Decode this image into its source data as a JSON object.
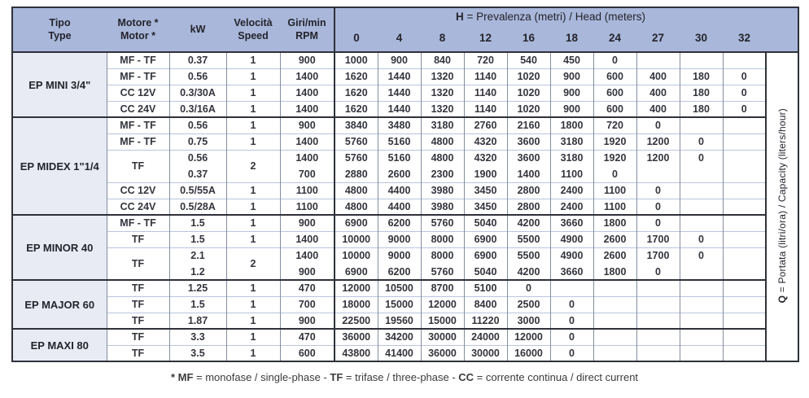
{
  "header": {
    "tipo1": "Tipo",
    "tipo2": "Type",
    "motore1": "Motore *",
    "motore2": "Motor *",
    "kw": "kW",
    "vel1": "Velocità",
    "vel2": "Speed",
    "giri1": "Giri/min",
    "giri2": "RPM",
    "h_bold": "H",
    "h_rest": " = Prevalenza (metri) / Head (meters)",
    "head_values": [
      "0",
      "4",
      "8",
      "12",
      "16",
      "18",
      "24",
      "27",
      "30",
      "32"
    ]
  },
  "q_label": {
    "bold": "Q",
    "rest": " = Portata (litri/ora) / Capacity (liters/hour)"
  },
  "groups": [
    {
      "type": "EP MINI 3/4\"",
      "rows": [
        {
          "motor": "MF - TF",
          "kw": "0.37",
          "speed": "1",
          "rpm": "900",
          "values": [
            "1000",
            "900",
            "840",
            "720",
            "540",
            "450",
            "0",
            "",
            "",
            ""
          ]
        },
        {
          "motor": "MF - TF",
          "kw": "0.56",
          "speed": "1",
          "rpm": "1400",
          "values": [
            "1620",
            "1440",
            "1320",
            "1140",
            "1020",
            "900",
            "600",
            "400",
            "180",
            "0"
          ]
        },
        {
          "motor": "CC 12V",
          "kw": "0.3/30A",
          "speed": "1",
          "rpm": "1400",
          "values": [
            "1620",
            "1440",
            "1320",
            "1140",
            "1020",
            "900",
            "600",
            "400",
            "180",
            "0"
          ]
        },
        {
          "motor": "CC 24V",
          "kw": "0.3/16A",
          "speed": "1",
          "rpm": "1400",
          "values": [
            "1620",
            "1440",
            "1320",
            "1140",
            "1020",
            "900",
            "600",
            "400",
            "180",
            "0"
          ]
        }
      ]
    },
    {
      "type": "EP MIDEX 1\"1/4",
      "rows": [
        {
          "motor": "MF - TF",
          "kw": "0.56",
          "speed": "1",
          "rpm": "900",
          "values": [
            "3840",
            "3480",
            "3180",
            "2760",
            "2160",
            "1800",
            "720",
            "0",
            "",
            ""
          ]
        },
        {
          "motor": "MF - TF",
          "kw": "0.75",
          "speed": "1",
          "rpm": "1400",
          "values": [
            "5760",
            "5160",
            "4800",
            "4320",
            "3600",
            "3180",
            "1920",
            "1200",
            "0",
            ""
          ]
        },
        {
          "motor": "TF",
          "kw": "0.56",
          "speed": "2",
          "rpm": "1400",
          "span": true,
          "values": [
            "5760",
            "5160",
            "4800",
            "4320",
            "3600",
            "3180",
            "1920",
            "1200",
            "0",
            ""
          ]
        },
        {
          "cont": true,
          "kw": "0.37",
          "rpm": "700",
          "values": [
            "2880",
            "2600",
            "2300",
            "1900",
            "1400",
            "1100",
            "0",
            "",
            "",
            ""
          ]
        },
        {
          "motor": "CC 12V",
          "kw": "0.5/55A",
          "speed": "1",
          "rpm": "1100",
          "values": [
            "4800",
            "4400",
            "3980",
            "3450",
            "2800",
            "2400",
            "1100",
            "0",
            "",
            ""
          ]
        },
        {
          "motor": "CC 24V",
          "kw": "0.5/28A",
          "speed": "1",
          "rpm": "1100",
          "values": [
            "4800",
            "4400",
            "3980",
            "3450",
            "2800",
            "2400",
            "1100",
            "0",
            "",
            ""
          ]
        }
      ]
    },
    {
      "type": "EP MINOR 40",
      "rows": [
        {
          "motor": "MF - TF",
          "kw": "1.5",
          "speed": "1",
          "rpm": "900",
          "values": [
            "6900",
            "6200",
            "5760",
            "5040",
            "4200",
            "3660",
            "1800",
            "0",
            "",
            ""
          ]
        },
        {
          "motor": "TF",
          "kw": "1.5",
          "speed": "1",
          "rpm": "1400",
          "values": [
            "10000",
            "9000",
            "8000",
            "6900",
            "5500",
            "4900",
            "2600",
            "1700",
            "0",
            ""
          ]
        },
        {
          "motor": "TF",
          "kw": "2.1",
          "speed": "2",
          "rpm": "1400",
          "span": true,
          "values": [
            "10000",
            "9000",
            "8000",
            "6900",
            "5500",
            "4900",
            "2600",
            "1700",
            "0",
            ""
          ]
        },
        {
          "cont": true,
          "kw": "1.2",
          "rpm": "900",
          "values": [
            "6900",
            "6200",
            "5760",
            "5040",
            "4200",
            "3660",
            "1800",
            "0",
            "",
            ""
          ]
        }
      ]
    },
    {
      "type": "EP MAJOR 60",
      "rows": [
        {
          "motor": "TF",
          "kw": "1.25",
          "speed": "1",
          "rpm": "470",
          "values": [
            "12000",
            "10500",
            "8700",
            "5100",
            "0",
            "",
            "",
            "",
            "",
            ""
          ]
        },
        {
          "motor": "TF",
          "kw": "1.5",
          "speed": "1",
          "rpm": "700",
          "values": [
            "18000",
            "15000",
            "12000",
            "8400",
            "2500",
            "0",
            "",
            "",
            "",
            ""
          ]
        },
        {
          "motor": "TF",
          "kw": "1.87",
          "speed": "1",
          "rpm": "900",
          "values": [
            "22500",
            "19560",
            "15000",
            "11220",
            "3000",
            "0",
            "",
            "",
            "",
            ""
          ]
        }
      ]
    },
    {
      "type": "EP MAXI 80",
      "rows": [
        {
          "motor": "TF",
          "kw": "3.3",
          "speed": "1",
          "rpm": "470",
          "values": [
            "36000",
            "34200",
            "30000",
            "24000",
            "12000",
            "0",
            "",
            "",
            "",
            ""
          ]
        },
        {
          "motor": "TF",
          "kw": "3.5",
          "speed": "1",
          "rpm": "600",
          "values": [
            "43800",
            "41400",
            "36000",
            "30000",
            "16000",
            "0",
            "",
            "",
            "",
            ""
          ]
        }
      ]
    }
  ],
  "footer": {
    "parts": [
      {
        "text": "* MF",
        "bold": true
      },
      {
        "text": " = monofase / single-phase - ",
        "bold": false
      },
      {
        "text": "TF",
        "bold": true
      },
      {
        "text": " = trifase / three-phase - ",
        "bold": false
      },
      {
        "text": "CC",
        "bold": true
      },
      {
        "text": " = corrente continua / direct current",
        "bold": false
      }
    ]
  }
}
